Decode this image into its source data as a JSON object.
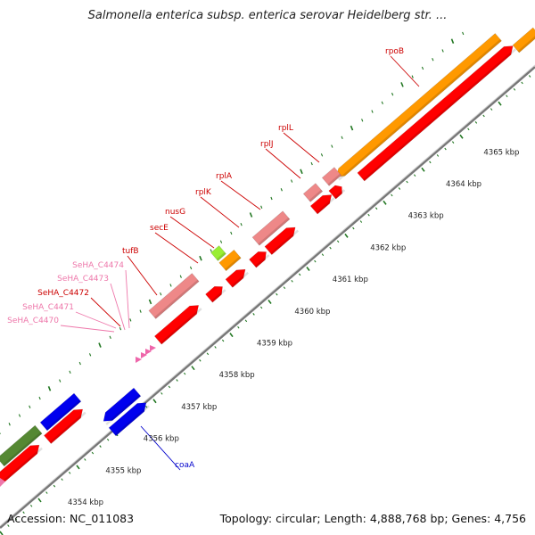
{
  "title": "Salmonella enterica subsp. enterica serovar Heidelberg str. ...",
  "footer": {
    "accession": "Accession: NC_011083",
    "summary": "Topology: circular; Length: 4,888,768 bp; Genes: 4,756"
  },
  "colors": {
    "cds": "#ff0000",
    "pseudo": "#ee8888",
    "rrna_orange": "#ff9900",
    "lightgreen": "#99ee33",
    "olive": "#558833",
    "blue": "#0000ee",
    "label_red": "#cc0000",
    "label_pink": "#ee77aa",
    "label_blue": "#0000cc",
    "tick": "#227722",
    "backbone": "#888888"
  },
  "scale_labels": [
    "4354 kbp",
    "4355 kbp",
    "4356 kbp",
    "4357 kbp",
    "4358 kbp",
    "4359 kbp",
    "4360 kbp",
    "4361 kbp",
    "4362 kbp",
    "4363 kbp",
    "4364 kbp",
    "4365 kbp"
  ],
  "gene_labels": [
    {
      "text": "rpoB",
      "color": "label_red"
    },
    {
      "text": "rplL",
      "color": "label_red"
    },
    {
      "text": "rplJ",
      "color": "label_red"
    },
    {
      "text": "rplA",
      "color": "label_red"
    },
    {
      "text": "rplK",
      "color": "label_red"
    },
    {
      "text": "nusG",
      "color": "label_red"
    },
    {
      "text": "secE",
      "color": "label_red"
    },
    {
      "text": "tufB",
      "color": "label_red"
    },
    {
      "text": "SeHA_C4474",
      "color": "label_pink"
    },
    {
      "text": "SeHA_C4473",
      "color": "label_pink"
    },
    {
      "text": "SeHA_C4472",
      "color": "label_red"
    },
    {
      "text": "SeHA_C4471",
      "color": "label_pink"
    },
    {
      "text": "SeHA_C4470",
      "color": "label_pink"
    },
    {
      "text": "coaA",
      "color": "label_blue"
    }
  ]
}
